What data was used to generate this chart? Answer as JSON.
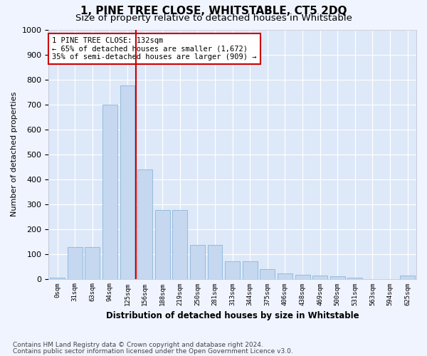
{
  "title": "1, PINE TREE CLOSE, WHITSTABLE, CT5 2DQ",
  "subtitle": "Size of property relative to detached houses in Whitstable",
  "xlabel": "Distribution of detached houses by size in Whitstable",
  "ylabel": "Number of detached properties",
  "categories": [
    "0sqm",
    "31sqm",
    "63sqm",
    "94sqm",
    "125sqm",
    "156sqm",
    "188sqm",
    "219sqm",
    "250sqm",
    "281sqm",
    "313sqm",
    "344sqm",
    "375sqm",
    "406sqm",
    "438sqm",
    "469sqm",
    "500sqm",
    "531sqm",
    "563sqm",
    "594sqm",
    "625sqm"
  ],
  "bar_values": [
    5,
    128,
    128,
    700,
    775,
    440,
    275,
    275,
    135,
    135,
    70,
    70,
    38,
    22,
    15,
    12,
    10,
    5,
    0,
    0,
    12
  ],
  "bar_color": "#c5d8f0",
  "bar_edge_color": "#7badd4",
  "vline_x": 4.5,
  "vline_color": "#cc0000",
  "annotation_line1": "1 PINE TREE CLOSE: 132sqm",
  "annotation_line2": "← 65% of detached houses are smaller (1,672)",
  "annotation_line3": "35% of semi-detached houses are larger (909) →",
  "annotation_box_color": "#ffffff",
  "annotation_box_edge": "#cc0000",
  "ylim": [
    0,
    1000
  ],
  "yticks": [
    0,
    100,
    200,
    300,
    400,
    500,
    600,
    700,
    800,
    900,
    1000
  ],
  "footnote1": "Contains HM Land Registry data © Crown copyright and database right 2024.",
  "footnote2": "Contains public sector information licensed under the Open Government Licence v3.0.",
  "bg_color": "#dde8f8",
  "grid_color": "#ffffff",
  "fig_bg": "#f0f4ff"
}
